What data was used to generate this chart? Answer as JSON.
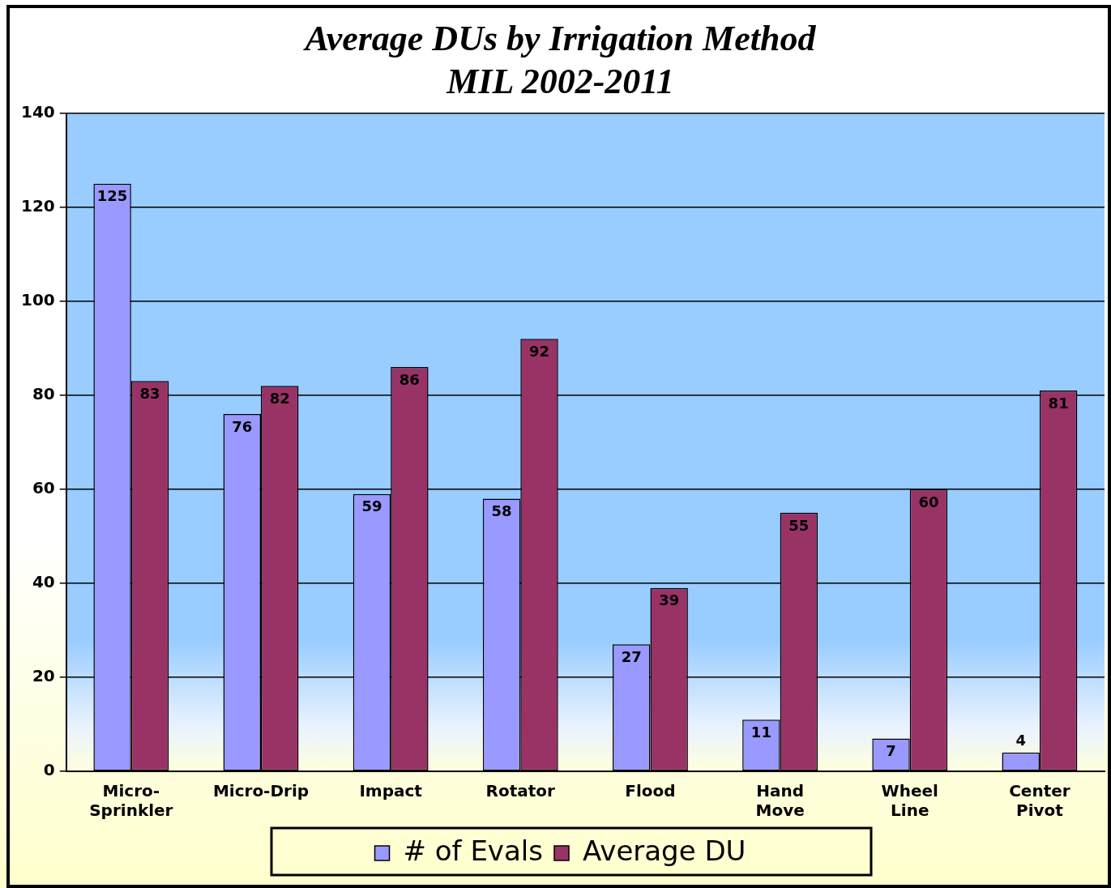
{
  "chart_data": {
    "type": "bar",
    "title": [
      "Average DUs by Irrigation Method",
      "MIL 2002-2011"
    ],
    "categories": [
      "Micro-Sprinkler",
      "Micro-Drip",
      "Impact",
      "Rotator",
      "Flood",
      "Hand Move",
      "Wheel Line",
      "Center Pivot"
    ],
    "series": [
      {
        "name": "# of Evals",
        "color": "#9999ff",
        "values": [
          125,
          76,
          59,
          58,
          27,
          11,
          7,
          4
        ]
      },
      {
        "name": "Average DU",
        "color": "#993366",
        "values": [
          83,
          82,
          86,
          92,
          39,
          55,
          60,
          81
        ]
      }
    ],
    "ylim": [
      0,
      140
    ],
    "yticks": [
      0,
      20,
      40,
      60,
      80,
      100,
      120,
      140
    ],
    "grid": "y",
    "legend": "bottom",
    "data_labels": true
  }
}
